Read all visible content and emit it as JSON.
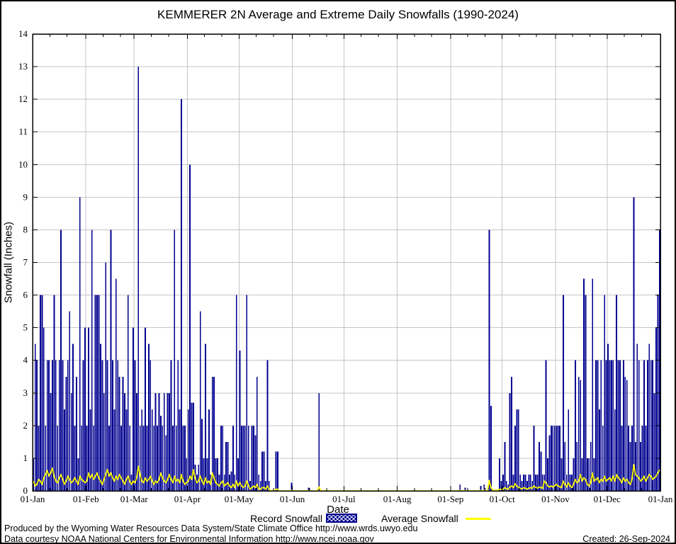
{
  "title": "KEMMERER 2N Average and Extreme Daily Snowfalls (1990-2024)",
  "colors": {
    "record_bar": "#000090",
    "average_line": "#ffff00",
    "grid": "#c5c5c5",
    "axis": "#000000",
    "background": "#ffffff"
  },
  "legend": {
    "record_label": "Record Snowfall",
    "average_label": "Average Snowfall"
  },
  "footer": {
    "line1": "Produced by the Wyoming Water Resources Data System/State Climate Office http://www.wrds.uwyo.edu",
    "line2": "Data courtesy NOAA National Centers for Environmental Information http://www.ncei.noaa.gov",
    "created": "Created: 26-Sep-2024"
  },
  "chart_data": {
    "type": "bar",
    "title": "KEMMERER 2N Average and Extreme Daily Snowfalls (1990-2024)",
    "xlabel": "Date",
    "ylabel": "Snowfall (Inches)",
    "ylim": [
      0,
      14
    ],
    "y_tick_step": 1,
    "grid": "on",
    "legend_position": "bottom",
    "x_tick_labels": [
      "01-Jan",
      "01-Feb",
      "01-Mar",
      "01-Apr",
      "01-May",
      "01-Jun",
      "01-Jul",
      "01-Aug",
      "01-Sep",
      "01-Oct",
      "01-Nov",
      "01-Dec",
      "01-Jan"
    ],
    "days_per_month": [
      31,
      28,
      31,
      30,
      31,
      30,
      31,
      31,
      30,
      31,
      30,
      31
    ],
    "series": [
      {
        "name": "Record Snowfall",
        "render": "bar",
        "color": "#000090",
        "values": [
          1,
          4.5,
          4,
          2,
          6,
          6,
          5,
          2,
          4,
          4,
          3,
          4,
          6,
          4,
          2,
          4,
          8,
          4,
          2.5,
          3.5,
          4,
          5.5,
          3,
          4.5,
          2,
          3.5,
          1,
          9,
          2,
          4,
          5,
          2,
          5,
          2.5,
          8,
          2,
          6,
          6,
          6,
          4.5,
          4,
          3,
          7,
          4,
          2,
          8,
          4,
          2.5,
          6.5,
          4,
          3.5,
          2,
          3.5,
          3,
          2.5,
          6,
          2,
          0.5,
          5,
          4,
          3,
          13,
          2,
          2.5,
          2,
          5,
          2,
          4.5,
          4,
          2.5,
          2,
          3,
          2,
          3,
          2.3,
          2,
          3,
          1.7,
          3,
          3,
          4,
          2,
          8,
          2,
          4,
          2.5,
          12,
          2,
          2,
          1,
          2.5,
          10,
          2.7,
          2.7,
          0.8,
          0.5,
          0.8,
          5.5,
          2.2,
          1,
          4.5,
          1,
          2.5,
          0.5,
          3.5,
          3.5,
          1,
          1,
          0.5,
          2,
          2,
          0.5,
          1.5,
          1.5,
          0.5,
          0.6,
          2,
          0.5,
          6,
          1,
          4.3,
          2,
          2,
          2,
          6,
          2,
          0.3,
          2,
          2,
          1.7,
          3.5,
          0.5,
          0.3,
          1.2,
          1.2,
          0.3,
          4,
          0.3,
          0,
          0,
          0,
          1.2,
          1.2,
          0,
          0,
          0,
          0,
          0,
          0,
          0,
          0.25,
          0,
          0,
          0,
          0,
          0,
          0,
          0,
          0,
          0,
          0.1,
          0,
          0,
          0,
          0,
          0,
          3,
          0,
          0,
          0,
          0,
          0,
          0,
          0,
          0,
          0,
          0,
          0,
          0,
          0,
          0,
          0,
          0,
          0,
          0,
          0,
          0,
          0,
          0,
          0,
          0,
          0,
          0,
          0,
          0,
          0,
          0,
          0,
          0,
          0,
          0,
          0,
          0,
          0,
          0,
          0,
          0,
          0,
          0,
          0,
          0,
          0,
          0,
          0,
          0,
          0,
          0,
          0,
          0,
          0,
          0,
          0,
          0,
          0,
          0,
          0,
          0,
          0,
          0,
          0,
          0,
          0,
          0,
          0,
          0,
          0,
          0,
          0,
          0,
          0,
          0,
          0,
          0,
          0,
          0,
          0,
          0,
          0,
          0.2,
          0,
          0,
          0.1,
          0,
          0,
          0,
          0,
          0,
          0,
          0,
          0,
          0.15,
          0,
          0.2,
          0,
          0,
          8,
          2.6,
          0,
          0,
          0,
          0,
          1,
          0.3,
          0.5,
          1.5,
          0.3,
          0.2,
          3,
          3.5,
          0.5,
          2,
          2.5,
          2.5,
          0.5,
          0.3,
          0.5,
          0.5,
          0.3,
          0.5,
          0.5,
          0.3,
          2,
          0.5,
          0.5,
          1.5,
          1.2,
          0.5,
          0.5,
          4,
          1,
          1.7,
          2,
          2,
          2,
          2,
          2,
          2,
          1,
          6,
          1.5,
          0.5,
          2.5,
          0.5,
          0.5,
          1,
          4,
          1.5,
          3.5,
          3.4,
          1,
          6.5,
          6,
          1,
          1,
          1.5,
          6.5,
          1,
          4,
          4,
          2.5,
          4,
          2,
          6,
          4,
          4.5,
          4,
          4,
          4,
          2.5,
          6,
          4,
          4,
          2,
          4,
          3.5,
          3.4,
          2,
          1.5,
          2,
          9,
          1.5,
          4.5,
          4,
          1.5,
          2,
          4,
          2,
          4,
          4.5,
          4,
          4,
          3,
          5,
          6,
          8
        ]
      },
      {
        "name": "Average Snowfall",
        "render": "line",
        "color": "#ffff00",
        "values": [
          0.3,
          0.15,
          0.2,
          0.35,
          0.3,
          0.2,
          0.4,
          0.5,
          0.62,
          0.45,
          0.55,
          0.7,
          0.45,
          0.3,
          0.25,
          0.4,
          0.5,
          0.35,
          0.2,
          0.3,
          0.45,
          0.35,
          0.25,
          0.3,
          0.4,
          0.3,
          0.2,
          0.45,
          0.35,
          0.3,
          0.25,
          0.3,
          0.55,
          0.4,
          0.5,
          0.35,
          0.45,
          0.55,
          0.4,
          0.3,
          0.2,
          0.35,
          0.5,
          0.65,
          0.45,
          0.55,
          0.4,
          0.3,
          0.45,
          0.35,
          0.5,
          0.4,
          0.3,
          0.2,
          0.35,
          0.45,
          0.3,
          0.2,
          0.3,
          0.25,
          0.4,
          0.75,
          0.5,
          0.3,
          0.25,
          0.4,
          0.3,
          0.35,
          0.45,
          0.3,
          0.2,
          0.3,
          0.25,
          0.35,
          0.55,
          0.4,
          0.3,
          0.25,
          0.35,
          0.5,
          0.35,
          0.25,
          0.45,
          0.3,
          0.35,
          0.25,
          0.5,
          0.3,
          0.2,
          0.25,
          0.3,
          0.45,
          0.35,
          0.65,
          0.4,
          0.25,
          0.3,
          0.45,
          0.3,
          0.2,
          0.4,
          0.25,
          0.3,
          0.2,
          0.55,
          0.4,
          0.25,
          0.2,
          0.15,
          0.25,
          0.3,
          0.15,
          0.2,
          0.25,
          0.15,
          0.1,
          0.2,
          0.1,
          0.3,
          0.15,
          0.25,
          0.15,
          0.1,
          0.15,
          0.3,
          0.15,
          0.05,
          0.1,
          0.15,
          0.1,
          0.2,
          0.05,
          0.05,
          0.1,
          0.1,
          0.05,
          0.15,
          0.05,
          0,
          0,
          0,
          0.05,
          0.05,
          0,
          0,
          0,
          0,
          0,
          0,
          0,
          0.02,
          0,
          0,
          0,
          0,
          0,
          0,
          0,
          0,
          0,
          0.01,
          0,
          0,
          0,
          0,
          0,
          0.12,
          0.02,
          0,
          0,
          0,
          0,
          0,
          0,
          0,
          0,
          0,
          0,
          0,
          0,
          0,
          0,
          0,
          0,
          0,
          0,
          0,
          0,
          0,
          0,
          0,
          0,
          0,
          0,
          0,
          0,
          0,
          0,
          0,
          0,
          0,
          0,
          0,
          0,
          0,
          0,
          0,
          0,
          0,
          0,
          0,
          0,
          0,
          0,
          0,
          0,
          0,
          0,
          0,
          0,
          0,
          0,
          0,
          0,
          0,
          0,
          0,
          0,
          0,
          0,
          0,
          0,
          0,
          0,
          0,
          0,
          0,
          0,
          0,
          0,
          0,
          0,
          0,
          0,
          0,
          0,
          0,
          0,
          0.01,
          0,
          0,
          0.01,
          0,
          0,
          0,
          0,
          0,
          0,
          0,
          0,
          0.01,
          0,
          0.02,
          0,
          0,
          0.32,
          0.1,
          0.03,
          0.02,
          0.02,
          0.03,
          0.05,
          0.04,
          0.05,
          0.1,
          0.06,
          0.05,
          0.12,
          0.15,
          0.1,
          0.22,
          0.15,
          0.1,
          0.08,
          0.06,
          0.1,
          0.08,
          0.05,
          0.08,
          0.1,
          0.08,
          0.15,
          0.1,
          0.08,
          0.12,
          0.1,
          0.08,
          0.3,
          0.25,
          0.15,
          0.12,
          0.15,
          0.12,
          0.15,
          0.2,
          0.15,
          0.12,
          0.1,
          0.3,
          0.2,
          0.12,
          0.25,
          0.15,
          0.1,
          0.2,
          0.35,
          0.25,
          0.3,
          0.5,
          0.3,
          0.4,
          0.35,
          0.2,
          0.15,
          0.25,
          0.55,
          0.3,
          0.35,
          0.4,
          0.25,
          0.35,
          0.3,
          0.45,
          0.3,
          0.35,
          0.4,
          0.3,
          0.45,
          0.3,
          0.5,
          0.4,
          0.35,
          0.25,
          0.4,
          0.3,
          0.35,
          0.25,
          0.2,
          0.35,
          0.8,
          0.5,
          0.45,
          0.4,
          0.3,
          0.35,
          0.45,
          0.3,
          0.4,
          0.5,
          0.45,
          0.35,
          0.4,
          0.45,
          0.55,
          0.65
        ]
      }
    ]
  }
}
